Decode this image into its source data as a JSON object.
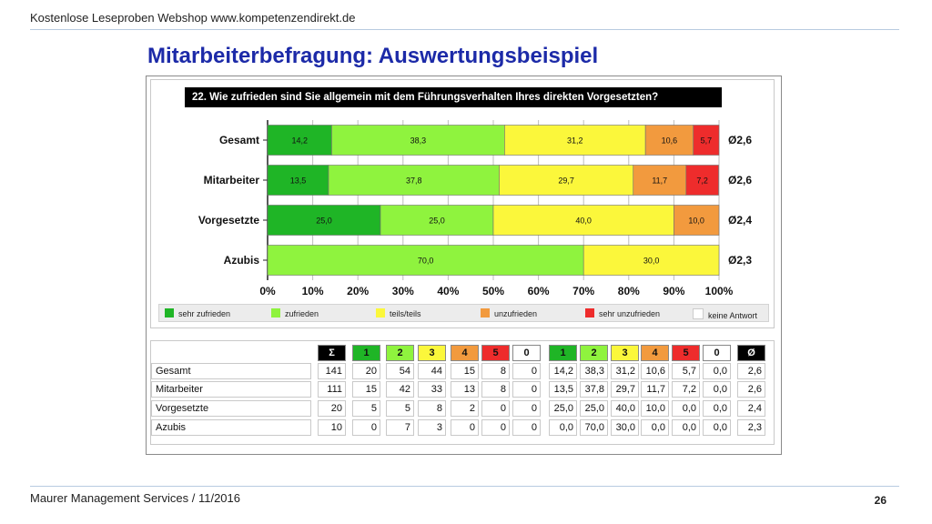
{
  "header": {
    "top_text": "Kostenlose Leseproben Webshop www.kompetenzendirekt.de",
    "title": "Mitarbeiterbefragung: Auswertungsbeispiel"
  },
  "footer": {
    "left": "Maurer Management Services / 11/2016",
    "page": "26"
  },
  "colors": {
    "sehr_zufrieden": "#1fb526",
    "zufrieden": "#8ff33e",
    "teils": "#fbf73b",
    "unzufrieden": "#f29a3e",
    "sehr_unzufrieden": "#ee2c2c",
    "keine": "#ffffff"
  },
  "chart_data": {
    "type": "bar",
    "orientation": "horizontal",
    "stacked": true,
    "title": "22. Wie zufrieden sind Sie allgemein mit dem Führungsverhalten Ihres direkten Vorgesetzten?",
    "categories": [
      "Gesamt",
      "Mitarbeiter",
      "Vorgesetzte",
      "Azubis"
    ],
    "averages": [
      "Ø2,6",
      "Ø2,6",
      "Ø2,4",
      "Ø2,3"
    ],
    "xlim": [
      0,
      100
    ],
    "x_ticks": [
      "0%",
      "10%",
      "20%",
      "30%",
      "40%",
      "50%",
      "60%",
      "70%",
      "80%",
      "90%",
      "100%"
    ],
    "grid": true,
    "legend_position": "bottom",
    "series": [
      {
        "name": "sehr zufrieden",
        "color": "#1fb526",
        "values": [
          14.2,
          13.5,
          25.0,
          0.0
        ],
        "labels": [
          "14,2",
          "13,5",
          "25,0",
          ""
        ]
      },
      {
        "name": "zufrieden",
        "color": "#8ff33e",
        "values": [
          38.3,
          37.8,
          25.0,
          70.0
        ],
        "labels": [
          "38,3",
          "37,8",
          "25,0",
          "70,0"
        ]
      },
      {
        "name": "teils/teils",
        "color": "#fbf73b",
        "values": [
          31.2,
          29.7,
          40.0,
          30.0
        ],
        "labels": [
          "31,2",
          "29,7",
          "40,0",
          "30,0"
        ]
      },
      {
        "name": "unzufrieden",
        "color": "#f29a3e",
        "values": [
          10.6,
          11.7,
          10.0,
          0.0
        ],
        "labels": [
          "10,6",
          "11,7",
          "10,0",
          ""
        ]
      },
      {
        "name": "sehr unzufrieden",
        "color": "#ee2c2c",
        "values": [
          5.7,
          7.2,
          0.0,
          0.0
        ],
        "labels": [
          "5,7",
          "7,2",
          "",
          ""
        ]
      },
      {
        "name": "keine Antwort",
        "color": "#ffffff",
        "values": [
          0.0,
          0.0,
          0.0,
          0.0
        ],
        "labels": [
          "",
          "",
          "",
          ""
        ]
      }
    ]
  },
  "table": {
    "header": [
      "Σ",
      "1",
      "2",
      "3",
      "4",
      "5",
      "0",
      "1",
      "2",
      "3",
      "4",
      "5",
      "0",
      "Ø"
    ],
    "header_bg": [
      "#000000",
      "#1fb526",
      "#8ff33e",
      "#fbf73b",
      "#f29a3e",
      "#ee2c2c",
      "#ffffff",
      "#1fb526",
      "#8ff33e",
      "#fbf73b",
      "#f29a3e",
      "#ee2c2c",
      "#ffffff",
      "#000000"
    ],
    "header_fg": [
      "#ffffff",
      "#111111",
      "#111111",
      "#111111",
      "#111111",
      "#111111",
      "#111111",
      "#111111",
      "#111111",
      "#111111",
      "#111111",
      "#111111",
      "#111111",
      "#ffffff"
    ],
    "rows": [
      {
        "label": "Gesamt",
        "cells": [
          "141",
          "20",
          "54",
          "44",
          "15",
          "8",
          "0",
          "14,2",
          "38,3",
          "31,2",
          "10,6",
          "5,7",
          "0,0",
          "2,6"
        ]
      },
      {
        "label": "Mitarbeiter",
        "cells": [
          "111",
          "15",
          "42",
          "33",
          "13",
          "8",
          "0",
          "13,5",
          "37,8",
          "29,7",
          "11,7",
          "7,2",
          "0,0",
          "2,6"
        ]
      },
      {
        "label": "Vorgesetzte",
        "cells": [
          "20",
          "5",
          "5",
          "8",
          "2",
          "0",
          "0",
          "25,0",
          "25,0",
          "40,0",
          "10,0",
          "0,0",
          "0,0",
          "2,4"
        ]
      },
      {
        "label": "Azubis",
        "cells": [
          "10",
          "0",
          "7",
          "3",
          "0",
          "0",
          "0",
          "0,0",
          "70,0",
          "30,0",
          "0,0",
          "0,0",
          "0,0",
          "2,3"
        ]
      }
    ]
  }
}
